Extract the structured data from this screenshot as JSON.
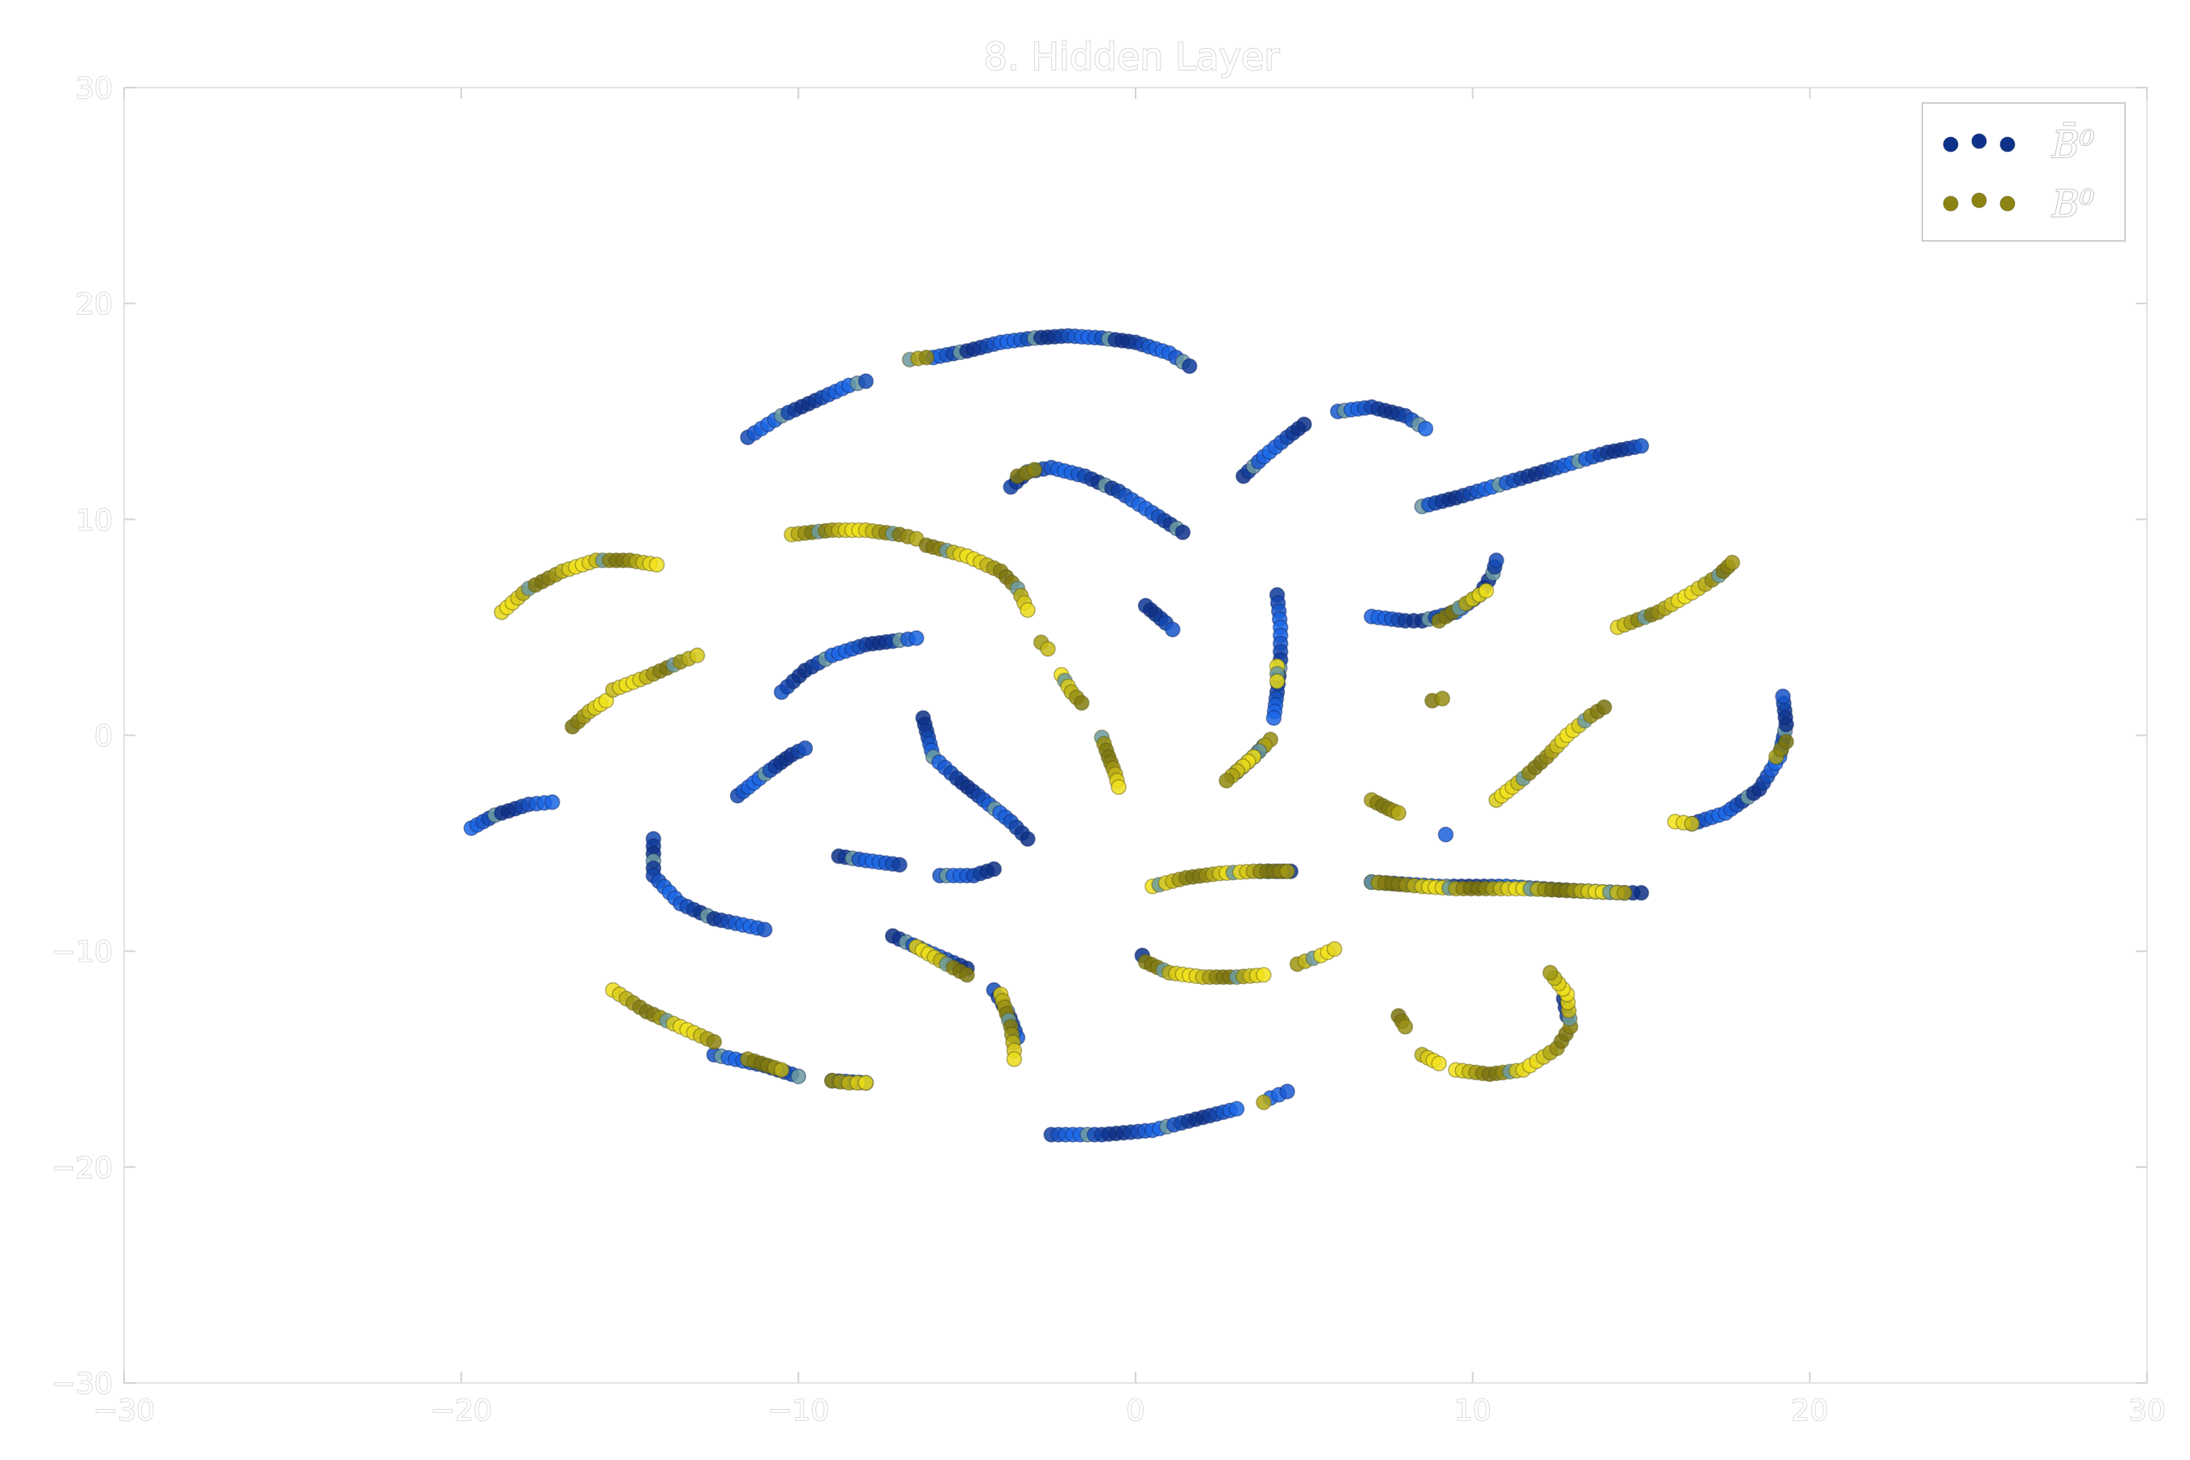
{
  "chart_data": {
    "type": "scatter",
    "title": "8. Hidden Layer",
    "xlabel": "",
    "ylabel": "",
    "xlim": [
      -30,
      30
    ],
    "ylim": [
      -30,
      30
    ],
    "xticks": [
      -30,
      -20,
      -10,
      0,
      10,
      20,
      30
    ],
    "yticks": [
      -30,
      -20,
      -10,
      0,
      10,
      20,
      30
    ],
    "xtick_labels": [
      "−30",
      "−20",
      "−10",
      "0",
      "10",
      "20",
      "30"
    ],
    "ytick_labels": [
      "−30",
      "−20",
      "−10",
      "0",
      "10",
      "20",
      "30"
    ],
    "grid": false,
    "legend_position": "top-right",
    "colors": {
      "bbar0_dark": "#0d2f85",
      "bbar0_light": "#1a66e6",
      "b0_dark": "#7a7310",
      "b0_light": "#f2e21a",
      "mixed": "#6b9aa0"
    },
    "series": [
      {
        "name": "B̄⁰",
        "legend_label": "B̄⁰",
        "color": "#0d2f85",
        "segments": [
          [
            [
              -11.5,
              13.8
            ],
            [
              -10.5,
              14.8
            ],
            [
              -9.5,
              15.5
            ],
            [
              -8.5,
              16.2
            ],
            [
              -8.0,
              16.4
            ]
          ],
          [
            [
              -6.0,
              17.5
            ],
            [
              -5.0,
              17.8
            ],
            [
              -4.0,
              18.2
            ],
            [
              -3.0,
              18.4
            ],
            [
              -2.0,
              18.5
            ],
            [
              -1.0,
              18.4
            ],
            [
              0.0,
              18.2
            ],
            [
              1.0,
              17.7
            ],
            [
              1.6,
              17.1
            ]
          ],
          [
            [
              -3.7,
              11.5
            ],
            [
              -3.2,
              12.2
            ],
            [
              -2.5,
              12.4
            ],
            [
              -1.5,
              12.0
            ],
            [
              -0.5,
              11.3
            ],
            [
              0.5,
              10.3
            ],
            [
              1.4,
              9.4
            ]
          ],
          [
            [
              3.2,
              12.0
            ],
            [
              3.8,
              12.9
            ],
            [
              4.5,
              13.8
            ],
            [
              5.0,
              14.4
            ]
          ],
          [
            [
              6.0,
              15.0
            ],
            [
              7.0,
              15.2
            ],
            [
              8.0,
              14.8
            ],
            [
              8.6,
              14.2
            ]
          ],
          [
            [
              8.5,
              10.6
            ],
            [
              9.5,
              11.0
            ],
            [
              11.0,
              11.7
            ],
            [
              12.5,
              12.4
            ],
            [
              14.0,
              13.1
            ],
            [
              15.0,
              13.4
            ]
          ],
          [
            [
              0.3,
              6.0
            ],
            [
              0.6,
              5.6
            ],
            [
              0.9,
              5.2
            ],
            [
              1.1,
              4.9
            ]
          ],
          [
            [
              4.2,
              6.5
            ],
            [
              4.3,
              5.0
            ],
            [
              4.3,
              3.5
            ],
            [
              4.2,
              2.0
            ],
            [
              4.1,
              0.8
            ]
          ],
          [
            [
              7.0,
              5.5
            ],
            [
              8.0,
              5.3
            ],
            [
              8.5,
              5.3
            ],
            [
              9.5,
              5.7
            ],
            [
              10.2,
              6.5
            ],
            [
              10.6,
              7.5
            ],
            [
              10.7,
              8.1
            ]
          ],
          [
            [
              -10.5,
              2.0
            ],
            [
              -9.8,
              3.0
            ],
            [
              -9.0,
              3.7
            ],
            [
              -8.0,
              4.2
            ],
            [
              -7.0,
              4.4
            ],
            [
              -6.5,
              4.5
            ]
          ],
          [
            [
              -6.3,
              0.8
            ],
            [
              -6.0,
              -1.0
            ],
            [
              -5.3,
              -2.0
            ],
            [
              -4.5,
              -3.0
            ],
            [
              -3.7,
              -4.0
            ],
            [
              -3.2,
              -4.8
            ]
          ],
          [
            [
              -11.8,
              -2.8
            ],
            [
              -11.0,
              -1.8
            ],
            [
              -10.2,
              -0.9
            ],
            [
              -9.8,
              -0.6
            ]
          ],
          [
            [
              -19.7,
              -4.3
            ],
            [
              -19.0,
              -3.7
            ],
            [
              -18.0,
              -3.2
            ],
            [
              -17.3,
              -3.1
            ]
          ],
          [
            [
              -14.3,
              -4.8
            ],
            [
              -14.3,
              -6.5
            ],
            [
              -13.5,
              -7.8
            ],
            [
              -12.5,
              -8.5
            ],
            [
              -11.0,
              -9.0
            ]
          ],
          [
            [
              -8.8,
              -5.6
            ],
            [
              -8.0,
              -5.8
            ],
            [
              -7.0,
              -6.0
            ]
          ],
          [
            [
              -5.8,
              -6.5
            ],
            [
              -4.8,
              -6.5
            ],
            [
              -4.2,
              -6.2
            ]
          ],
          [
            [
              3.7,
              -6.3
            ],
            [
              4.2,
              -6.3
            ],
            [
              4.6,
              -6.3
            ]
          ],
          [
            [
              7.0,
              -6.8
            ],
            [
              9.0,
              -7.0
            ],
            [
              11.0,
              -7.0
            ],
            [
              13.0,
              -7.2
            ],
            [
              14.5,
              -7.3
            ],
            [
              15.0,
              -7.3
            ]
          ],
          [
            [
              16.5,
              -4.1
            ],
            [
              17.5,
              -3.6
            ],
            [
              18.5,
              -2.5
            ],
            [
              19.1,
              -1.0
            ],
            [
              19.3,
              0.5
            ],
            [
              19.2,
              1.8
            ]
          ],
          [
            [
              9.2,
              -4.6
            ]
          ],
          [
            [
              3.0,
              -1.7
            ],
            [
              3.5,
              -1.0
            ],
            [
              3.8,
              -0.5
            ]
          ],
          [
            [
              0.2,
              -10.2
            ]
          ],
          [
            [
              -2.5,
              -18.5
            ],
            [
              -1.0,
              -18.5
            ],
            [
              0.5,
              -18.3
            ],
            [
              2.0,
              -17.7
            ],
            [
              3.0,
              -17.3
            ]
          ],
          [
            [
              4.0,
              -16.8
            ],
            [
              4.5,
              -16.5
            ]
          ],
          [
            [
              -4.2,
              -11.8
            ],
            [
              -3.8,
              -12.8
            ],
            [
              -3.5,
              -14.0
            ]
          ],
          [
            [
              -7.2,
              -9.3
            ],
            [
              -6.2,
              -10.0
            ],
            [
              -5.0,
              -10.8
            ]
          ],
          [
            [
              -12.5,
              -14.8
            ],
            [
              -11.0,
              -15.3
            ],
            [
              -10.0,
              -15.8
            ]
          ],
          [
            [
              -9.0,
              -16.0
            ],
            [
              -8.0,
              -16.1
            ]
          ],
          [
            [
              12.8,
              -13.0
            ],
            [
              12.7,
              -12.2
            ]
          ]
        ]
      },
      {
        "name": "B⁰",
        "legend_label": "B⁰",
        "color": "#7a7310",
        "segments": [
          [
            [
              -18.8,
              5.7
            ],
            [
              -18.0,
              6.8
            ],
            [
              -17.0,
              7.6
            ],
            [
              -16.0,
              8.1
            ],
            [
              -15.0,
              8.1
            ],
            [
              -14.2,
              7.9
            ]
          ],
          [
            [
              -10.2,
              9.3
            ],
            [
              -9.0,
              9.5
            ],
            [
              -8.0,
              9.5
            ],
            [
              -7.0,
              9.3
            ],
            [
              -6.5,
              9.1
            ]
          ],
          [
            [
              -6.2,
              8.8
            ],
            [
              -5.0,
              8.3
            ],
            [
              -4.0,
              7.6
            ],
            [
              -3.5,
              6.8
            ],
            [
              -3.2,
              5.8
            ]
          ],
          [
            [
              -2.8,
              4.3
            ],
            [
              -2.6,
              4.0
            ]
          ],
          [
            [
              -2.2,
              2.8
            ],
            [
              -1.9,
              2.0
            ],
            [
              -1.6,
              1.5
            ]
          ],
          [
            [
              -1.0,
              -0.1
            ],
            [
              -0.8,
              -1.0
            ],
            [
              -0.6,
              -1.8
            ],
            [
              -0.5,
              -2.4
            ]
          ],
          [
            [
              -16.7,
              0.4
            ],
            [
              -16.2,
              1.1
            ],
            [
              -15.7,
              1.6
            ]
          ],
          [
            [
              -15.5,
              2.1
            ],
            [
              -14.5,
              2.7
            ],
            [
              -13.5,
              3.4
            ],
            [
              -13.0,
              3.7
            ]
          ],
          [
            [
              -15.5,
              -11.8
            ],
            [
              -14.5,
              -12.8
            ],
            [
              -13.5,
              -13.5
            ],
            [
              -12.5,
              -14.2
            ]
          ],
          [
            [
              -11.5,
              -15.0
            ],
            [
              -10.5,
              -15.5
            ]
          ],
          [
            [
              -9.0,
              -16.0
            ],
            [
              -8.5,
              -16.1
            ],
            [
              -8.0,
              -16.1
            ]
          ],
          [
            [
              -6.5,
              -9.8
            ],
            [
              -5.6,
              -10.6
            ],
            [
              -5.0,
              -11.1
            ]
          ],
          [
            [
              -4.0,
              -12.0
            ],
            [
              -3.7,
              -13.5
            ],
            [
              -3.6,
              -14.6
            ],
            [
              -3.6,
              -15.0
            ]
          ],
          [
            [
              0.3,
              -10.5
            ],
            [
              1.0,
              -11.0
            ],
            [
              2.0,
              -11.2
            ],
            [
              3.0,
              -11.2
            ],
            [
              3.8,
              -11.1
            ]
          ],
          [
            [
              4.8,
              -10.6
            ],
            [
              5.5,
              -10.2
            ],
            [
              5.9,
              -9.9
            ]
          ],
          [
            [
              0.5,
              -7.0
            ],
            [
              1.5,
              -6.6
            ],
            [
              2.5,
              -6.4
            ],
            [
              3.5,
              -6.3
            ],
            [
              4.5,
              -6.3
            ]
          ],
          [
            [
              7.0,
              -6.8
            ],
            [
              7.8,
              -6.9
            ],
            [
              8.5,
              -7.0
            ],
            [
              9.5,
              -7.1
            ],
            [
              11.5,
              -7.1
            ],
            [
              14.5,
              -7.3
            ]
          ],
          [
            [
              7.8,
              -13.0
            ],
            [
              8.0,
              -13.5
            ]
          ],
          [
            [
              8.5,
              -14.8
            ],
            [
              9.0,
              -15.2
            ]
          ],
          [
            [
              9.5,
              -15.5
            ],
            [
              10.5,
              -15.7
            ],
            [
              11.5,
              -15.5
            ],
            [
              12.5,
              -14.5
            ],
            [
              12.9,
              -13.5
            ],
            [
              12.8,
              -12.0
            ],
            [
              12.3,
              -11.0
            ]
          ],
          [
            [
              7.0,
              -3.0
            ],
            [
              7.5,
              -3.4
            ],
            [
              7.8,
              -3.6
            ]
          ],
          [
            [
              8.8,
              1.6
            ],
            [
              9.1,
              1.7
            ]
          ],
          [
            [
              10.7,
              -3.0
            ],
            [
              11.5,
              -2.0
            ],
            [
              12.2,
              -1.0
            ],
            [
              12.8,
              0.0
            ],
            [
              13.5,
              0.9
            ],
            [
              13.9,
              1.3
            ]
          ],
          [
            [
              14.3,
              5.0
            ],
            [
              15.5,
              5.7
            ],
            [
              16.5,
              6.6
            ],
            [
              17.3,
              7.4
            ],
            [
              17.7,
              8.0
            ]
          ],
          [
            [
              9.0,
              5.3
            ],
            [
              10.0,
              6.3
            ],
            [
              10.4,
              6.7
            ]
          ],
          [
            [
              4.0,
              -0.2
            ],
            [
              3.5,
              -1.0
            ],
            [
              2.7,
              -2.1
            ]
          ],
          [
            [
              4.2,
              3.2
            ],
            [
              4.2,
              2.5
            ]
          ],
          [
            [
              -6.7,
              17.4
            ],
            [
              -6.2,
              17.5
            ]
          ],
          [
            [
              -3.5,
              12.0
            ],
            [
              -3.0,
              12.3
            ]
          ],
          [
            [
              3.8,
              -17.0
            ]
          ],
          [
            [
              16.0,
              -4.0
            ],
            [
              16.5,
              -4.1
            ]
          ],
          [
            [
              19.0,
              -1.0
            ],
            [
              19.3,
              -0.3
            ]
          ]
        ]
      }
    ]
  }
}
